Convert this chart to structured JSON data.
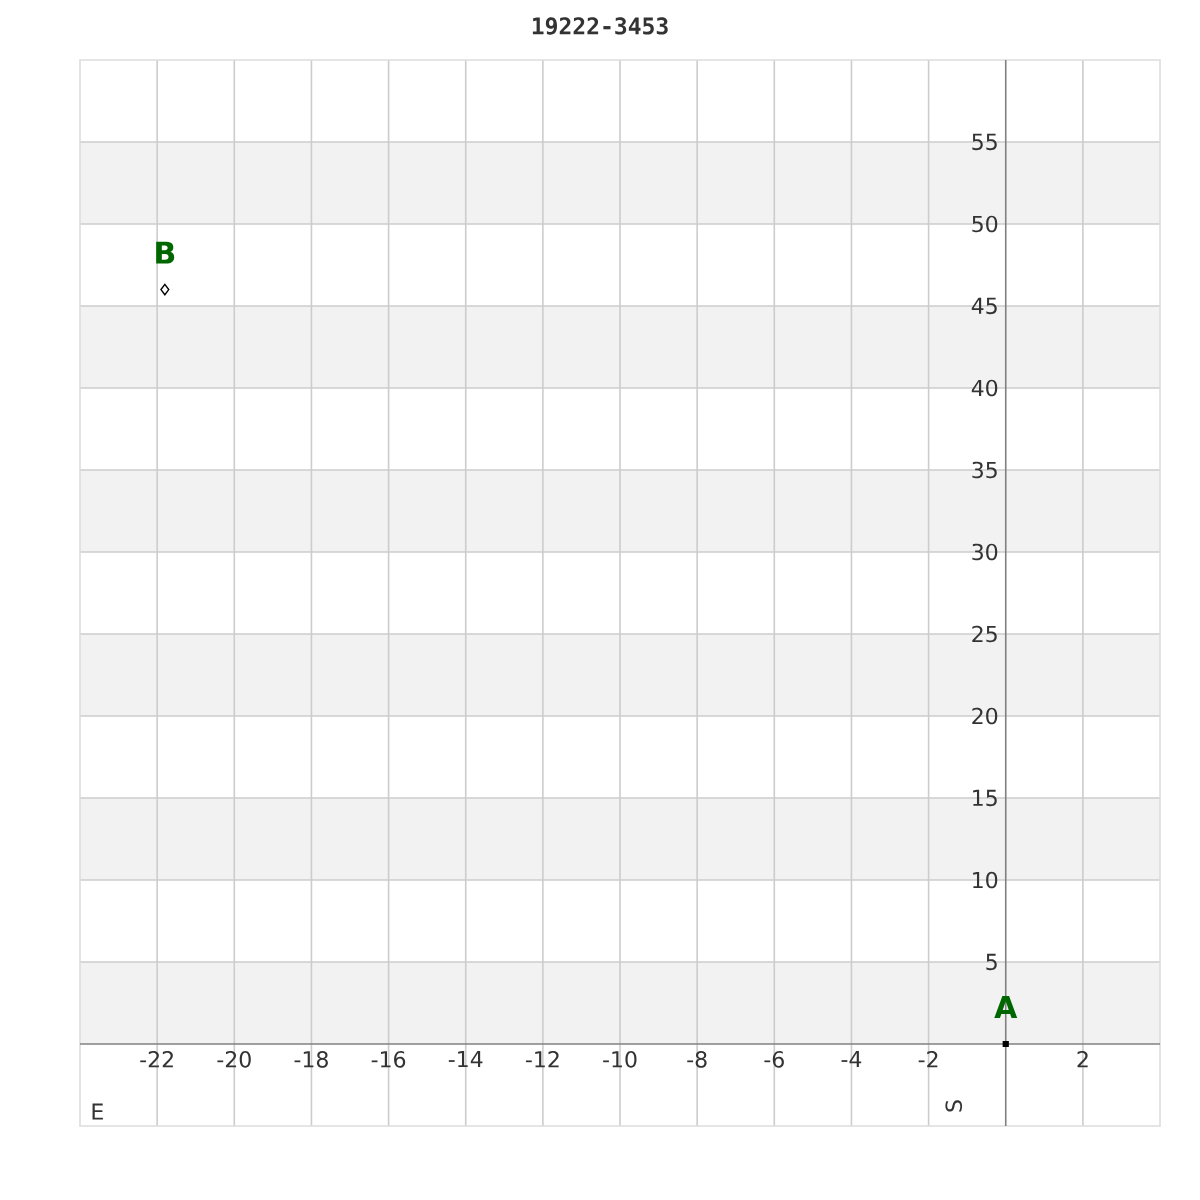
{
  "chart_data": {
    "type": "scatter",
    "title": "19222-3453",
    "xlabel": "E",
    "ylabel": "S",
    "series": [
      {
        "name": "A",
        "color": "#000000",
        "marker": "square",
        "x": [
          0
        ],
        "values": [
          0
        ]
      },
      {
        "name": "B",
        "color": "#000000",
        "marker": "diamond",
        "x": [
          -21.8
        ],
        "values": [
          46
        ]
      }
    ],
    "xlim": [
      -24,
      4
    ],
    "ylim": [
      -5,
      60
    ],
    "xticks": [
      -22,
      -20,
      -18,
      -16,
      -14,
      -12,
      -10,
      -8,
      -6,
      -4,
      -2,
      2
    ],
    "yticks": [
      5,
      10,
      15,
      20,
      25,
      30,
      35,
      40,
      45,
      50,
      55
    ],
    "grid": true,
    "bands": [
      {
        "axis": "y",
        "from": 0,
        "to": 5,
        "color": "#f2f2f2"
      },
      {
        "axis": "y",
        "from": 10,
        "to": 15,
        "color": "#f2f2f2"
      },
      {
        "axis": "y",
        "from": 20,
        "to": 25,
        "color": "#f2f2f2"
      },
      {
        "axis": "y",
        "from": 30,
        "to": 35,
        "color": "#f2f2f2"
      },
      {
        "axis": "y",
        "from": 40,
        "to": 45,
        "color": "#f2f2f2"
      },
      {
        "axis": "y",
        "from": 50,
        "to": 55,
        "color": "#f2f2f2"
      }
    ]
  }
}
